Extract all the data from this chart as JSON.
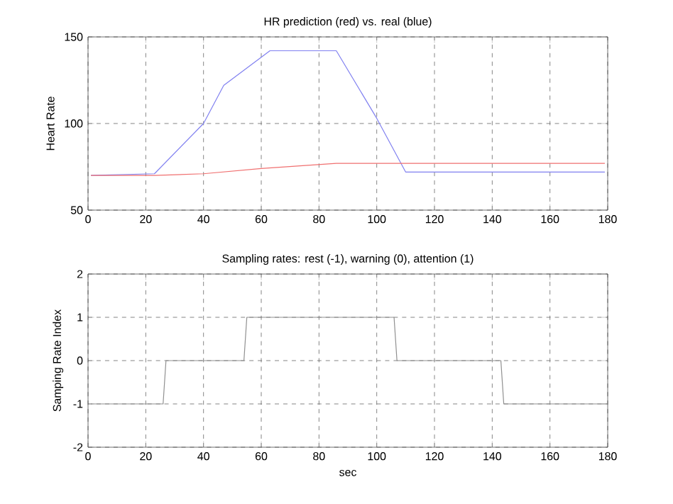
{
  "chart_data": [
    {
      "type": "line",
      "title": "HR prediction (red) vs. real (blue)",
      "ylabel": "Heart Rate",
      "xlim": [
        0,
        180
      ],
      "ylim": [
        50,
        150
      ],
      "xticks": [
        0,
        20,
        40,
        60,
        80,
        100,
        120,
        140,
        160,
        180
      ],
      "yticks": [
        50,
        100,
        150
      ],
      "grid": true,
      "series": [
        {
          "color": "#8080f0",
          "x": [
            1,
            23,
            40,
            47,
            63,
            86,
            100,
            110,
            179
          ],
          "values": [
            70,
            71,
            100,
            122,
            142,
            142,
            103,
            72,
            72
          ]
        },
        {
          "color": "#f07070",
          "x": [
            1,
            23,
            40,
            60,
            86,
            179
          ],
          "values": [
            70,
            70,
            71,
            74,
            77,
            77
          ]
        }
      ]
    },
    {
      "type": "line",
      "title": "Sampling rates: rest (-1), warning (0), attention (1)",
      "xlabel": "sec",
      "ylabel": "Samping Rate Index",
      "xlim": [
        0,
        180
      ],
      "ylim": [
        -2,
        2
      ],
      "xticks": [
        0,
        20,
        40,
        60,
        80,
        100,
        120,
        140,
        160,
        180
      ],
      "yticks": [
        -2,
        -1,
        0,
        1,
        2
      ],
      "grid": true,
      "series": [
        {
          "color": "#909090",
          "x": [
            1,
            26,
            27,
            54,
            55,
            106,
            107,
            143,
            144,
            180
          ],
          "values": [
            -1,
            -1,
            0,
            0,
            1,
            1,
            0,
            0,
            -1,
            -1
          ]
        }
      ]
    }
  ]
}
